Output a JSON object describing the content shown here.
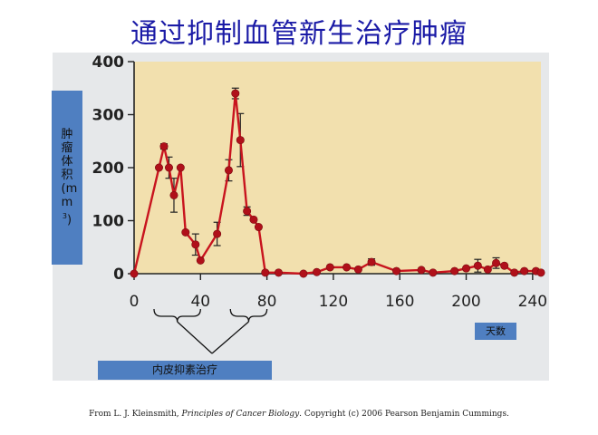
{
  "slide": {
    "title": "通过抑制血管新生治疗肿瘤",
    "credit": {
      "prefix": "From L. J. Kleinsmith, ",
      "book": "Principles of Cancer Biology",
      "suffix": ". Copyright (c) 2006 Pearson Benjamin Cummings."
    }
  },
  "labels": {
    "ylabel_main": "肿瘤体积(mm",
    "ylabel_sup": "3",
    "ylabel_close": ")",
    "xlabel": "天数",
    "treatment": "内皮抑素治疗"
  },
  "colors": {
    "plot_bg": "#f2e0ae",
    "panel_bg": "#e6e8ea",
    "line": "#c8141e",
    "marker": "#b0101a",
    "title": "#1a1aa6",
    "label_box": "#4f7fc1"
  },
  "chart_data": {
    "type": "line",
    "xlabel": "天数",
    "ylabel": "肿瘤体积(mm3)",
    "xlim": [
      0,
      245
    ],
    "ylim": [
      0,
      400
    ],
    "xticks": [
      0,
      40,
      80,
      120,
      160,
      200,
      240
    ],
    "yticks": [
      0,
      100,
      200,
      300,
      400
    ],
    "grid": false,
    "points": [
      {
        "x": 0,
        "y": 0
      },
      {
        "x": 15,
        "y": 200
      },
      {
        "x": 18,
        "y": 240,
        "err": 5
      },
      {
        "x": 21,
        "y": 200,
        "err": 20
      },
      {
        "x": 24,
        "y": 148,
        "err": 32
      },
      {
        "x": 28,
        "y": 200
      },
      {
        "x": 31,
        "y": 78
      },
      {
        "x": 37,
        "y": 55,
        "err": 20
      },
      {
        "x": 40,
        "y": 25
      },
      {
        "x": 50,
        "y": 75,
        "err": 22
      },
      {
        "x": 57,
        "y": 195,
        "err": 20
      },
      {
        "x": 61,
        "y": 340,
        "err": 10
      },
      {
        "x": 64,
        "y": 252,
        "err": 50
      },
      {
        "x": 68,
        "y": 118,
        "err": 8
      },
      {
        "x": 72,
        "y": 102
      },
      {
        "x": 75,
        "y": 88
      },
      {
        "x": 79,
        "y": 2
      },
      {
        "x": 87,
        "y": 2
      },
      {
        "x": 102,
        "y": 0
      },
      {
        "x": 110,
        "y": 3
      },
      {
        "x": 118,
        "y": 12
      },
      {
        "x": 128,
        "y": 12
      },
      {
        "x": 135,
        "y": 8
      },
      {
        "x": 143,
        "y": 22,
        "err": 6
      },
      {
        "x": 158,
        "y": 5
      },
      {
        "x": 173,
        "y": 7
      },
      {
        "x": 180,
        "y": 2
      },
      {
        "x": 193,
        "y": 5
      },
      {
        "x": 200,
        "y": 10
      },
      {
        "x": 207,
        "y": 15,
        "err": 12
      },
      {
        "x": 213,
        "y": 8
      },
      {
        "x": 218,
        "y": 20,
        "err": 10
      },
      {
        "x": 223,
        "y": 15
      },
      {
        "x": 229,
        "y": 2
      },
      {
        "x": 235,
        "y": 5
      },
      {
        "x": 242,
        "y": 5
      },
      {
        "x": 247,
        "y": 2
      }
    ],
    "treatment_periods": [
      {
        "start": 12,
        "end": 40
      },
      {
        "start": 58,
        "end": 80
      }
    ]
  }
}
